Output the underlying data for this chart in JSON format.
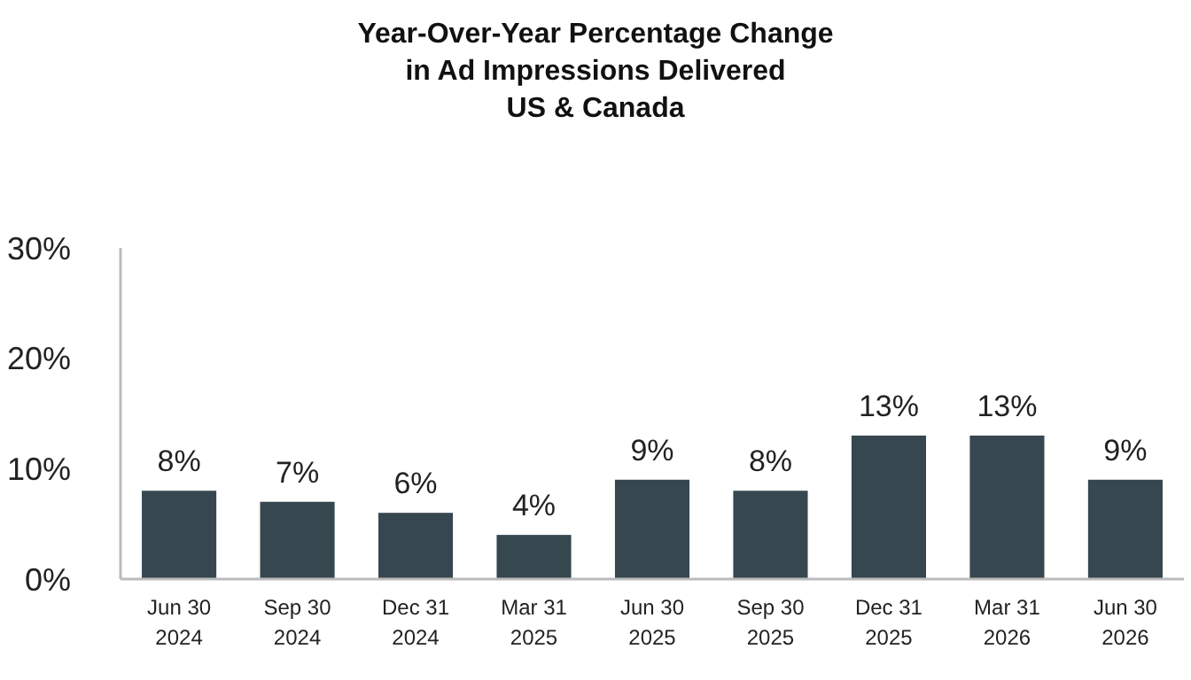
{
  "chart_data": {
    "type": "bar",
    "title": "Year-Over-Year Percentage Change\nin Ad Impressions Delivered\nUS & Canada",
    "categories": [
      "Jun 30\n2024",
      "Sep 30\n2024",
      "Dec 31\n2024",
      "Mar 31\n2025",
      "Jun 30\n2025",
      "Sep 30\n2025",
      "Dec 31\n2025",
      "Mar 31\n2026",
      "Jun 30\n2026"
    ],
    "values": [
      8,
      7,
      6,
      4,
      9,
      8,
      13,
      13,
      9
    ],
    "value_labels": [
      "8%",
      "7%",
      "6%",
      "4%",
      "9%",
      "8%",
      "13%",
      "13%",
      "9%"
    ],
    "color": "#36474f",
    "ylim": [
      0,
      30
    ],
    "yticks": [
      {
        "value": 0,
        "label": "0%"
      },
      {
        "value": 10,
        "label": "10%"
      },
      {
        "value": 20,
        "label": "20%"
      },
      {
        "value": 30,
        "label": "30%"
      }
    ],
    "grid": false
  }
}
